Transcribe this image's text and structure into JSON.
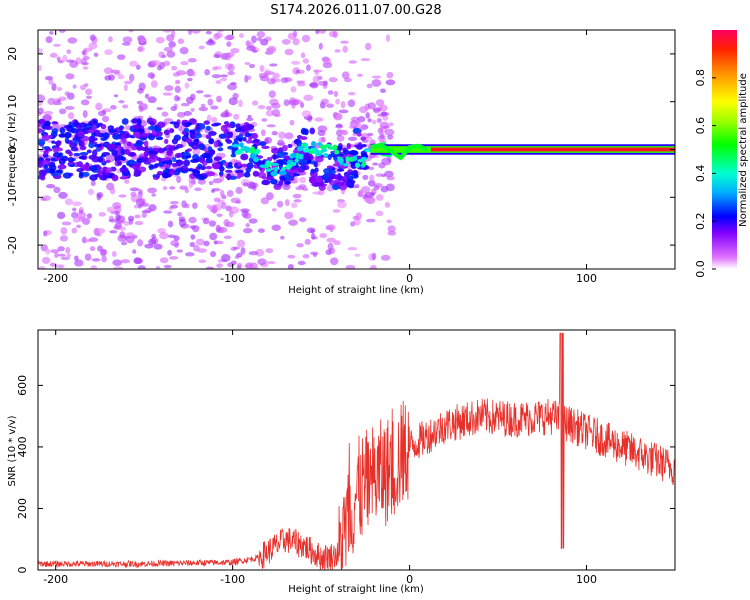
{
  "title": "S174.2026.011.07.00.G28",
  "colors": {
    "snr_line": "#e8302b",
    "axis": "#000000",
    "background": "#ffffff"
  },
  "chart_data": [
    {
      "type": "heatmap",
      "name": "spectrogram",
      "xlabel": "Height of straight line (km)",
      "ylabel": "Frequency (Hz)",
      "xlim": [
        -210,
        150
      ],
      "ylim": [
        -25,
        25
      ],
      "xticks": [
        -200,
        -100,
        0,
        100
      ],
      "yticks": [
        20,
        10,
        0,
        -10,
        -20
      ],
      "colorbar": {
        "label": "Normalized spectral amplitude",
        "range": [
          0.0,
          1.0
        ],
        "ticks": [
          0.0,
          0.2,
          0.4,
          0.6,
          0.8
        ],
        "colormap": "hsv-rainbow (magenta to red)"
      },
      "carrier_frequency_hz": 0.0,
      "notes": "Diffuse scatter below height 0 km; single strong line at ~0 Hz above ~-20 km"
    },
    {
      "type": "line",
      "name": "snr",
      "xlabel": "Height of straight line (km)",
      "ylabel": "SNR (10 * v/v)",
      "xlim": [
        -210,
        150
      ],
      "ylim": [
        0,
        780
      ],
      "xticks": [
        -200,
        -100,
        0,
        100
      ],
      "yticks": [
        0,
        200,
        400,
        600
      ],
      "series": [
        {
          "name": "SNR",
          "color": "#e8302b",
          "envelope_x": [
            -210,
            -150,
            -100,
            -85,
            -70,
            -60,
            -50,
            -40,
            -30,
            -20,
            -10,
            0,
            20,
            40,
            60,
            80,
            88,
            100,
            120,
            150
          ],
          "envelope_y": [
            20,
            20,
            25,
            40,
            100,
            80,
            40,
            50,
            250,
            300,
            330,
            400,
            470,
            500,
            490,
            500,
            480,
            450,
            400,
            330
          ]
        }
      ]
    }
  ]
}
